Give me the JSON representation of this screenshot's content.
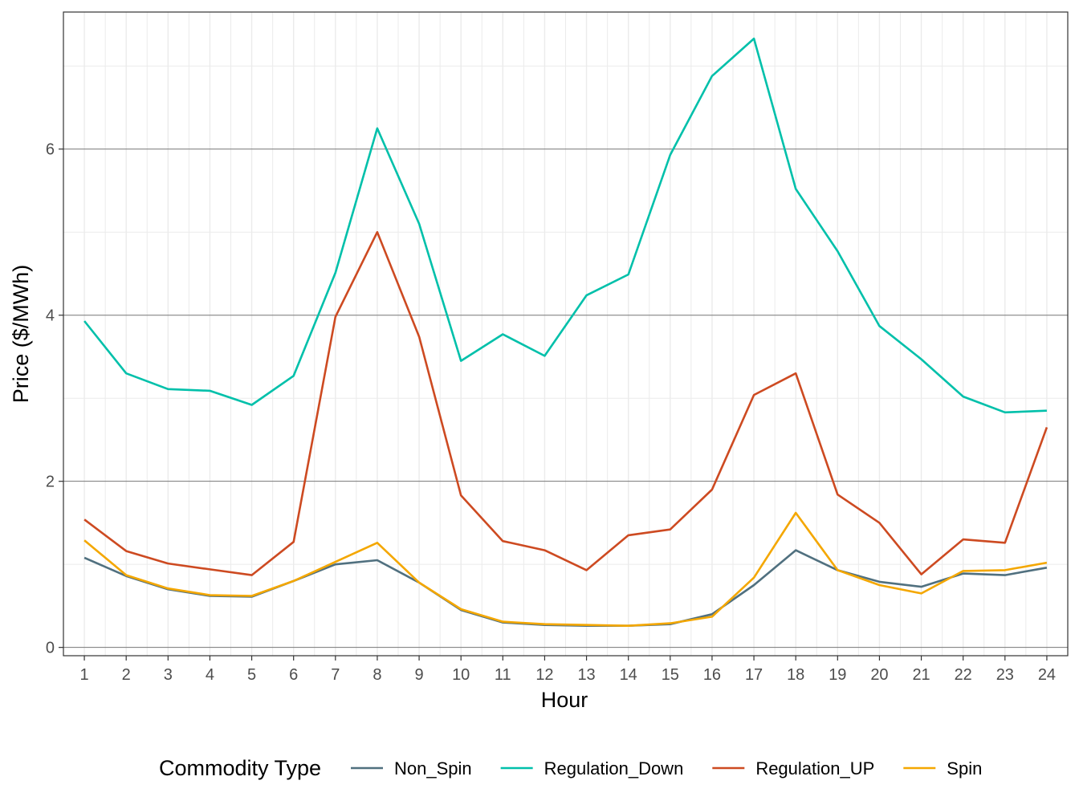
{
  "chart_data": {
    "type": "line",
    "title": "",
    "xlabel": "Hour",
    "ylabel": "Price ($/MWh)",
    "x": [
      1,
      2,
      3,
      4,
      5,
      6,
      7,
      8,
      9,
      10,
      11,
      12,
      13,
      14,
      15,
      16,
      17,
      18,
      19,
      20,
      21,
      22,
      23,
      24
    ],
    "x_tick_labels": [
      "1",
      "2",
      "3",
      "4",
      "5",
      "6",
      "7",
      "8",
      "9",
      "10",
      "11",
      "12",
      "13",
      "14",
      "15",
      "16",
      "17",
      "18",
      "19",
      "20",
      "21",
      "22",
      "23",
      "24"
    ],
    "xlim": [
      0.5,
      24.5
    ],
    "ylim": [
      -0.1,
      7.65
    ],
    "y_ticks": [
      0,
      2,
      4,
      6
    ],
    "y_tick_labels": [
      "0",
      "2",
      "4",
      "6"
    ],
    "grid": true,
    "legend": {
      "title": "Commodity Type",
      "position": "bottom"
    },
    "series": [
      {
        "name": "Non_Spin",
        "color": "#50707f",
        "values": [
          1.08,
          0.86,
          0.7,
          0.62,
          0.61,
          0.8,
          1.0,
          1.05,
          0.78,
          0.45,
          0.3,
          0.27,
          0.26,
          0.26,
          0.28,
          0.4,
          0.75,
          1.17,
          0.93,
          0.79,
          0.73,
          0.89,
          0.87,
          0.96
        ]
      },
      {
        "name": "Regulation_Down",
        "color": "#00c0aa",
        "values": [
          3.93,
          3.3,
          3.11,
          3.09,
          2.92,
          3.27,
          4.51,
          6.25,
          5.1,
          3.45,
          3.77,
          3.51,
          4.24,
          4.49,
          5.93,
          6.88,
          7.33,
          5.52,
          4.77,
          3.87,
          3.47,
          3.02,
          2.83,
          2.85
        ]
      },
      {
        "name": "Regulation_UP",
        "color": "#cd4a21",
        "values": [
          1.54,
          1.16,
          1.01,
          0.94,
          0.87,
          1.27,
          3.98,
          5.0,
          3.74,
          1.83,
          1.28,
          1.17,
          0.93,
          1.35,
          1.42,
          1.9,
          3.04,
          3.3,
          1.84,
          1.5,
          0.88,
          1.3,
          1.26,
          2.65
        ]
      },
      {
        "name": "Spin",
        "color": "#f4a700",
        "values": [
          1.29,
          0.87,
          0.71,
          0.63,
          0.62,
          0.8,
          1.03,
          1.26,
          0.78,
          0.46,
          0.31,
          0.28,
          0.27,
          0.26,
          0.29,
          0.37,
          0.84,
          1.62,
          0.93,
          0.75,
          0.65,
          0.92,
          0.93,
          1.02
        ]
      }
    ]
  }
}
